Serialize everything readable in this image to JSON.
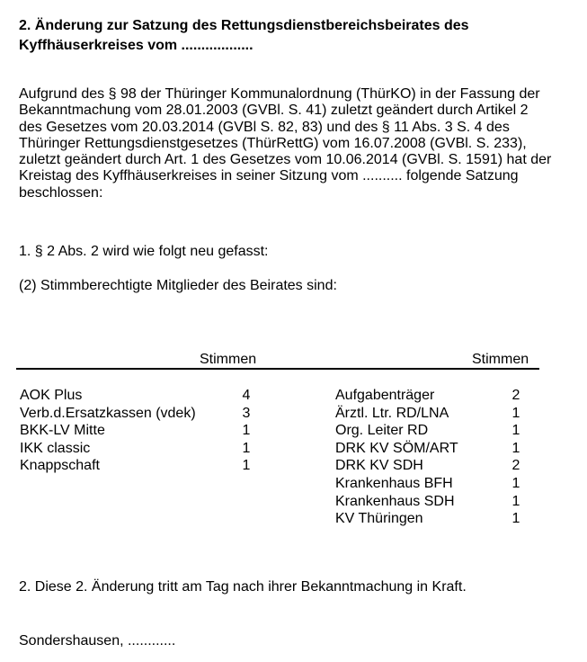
{
  "colors": {
    "page_background": "#ffffff",
    "text": "#000000",
    "table_rule": "#000000"
  },
  "document": {
    "title_lines": [
      "2. Änderung zur Satzung des Rettungsdienstbereichsbeirates des",
      "Kyffhäuserkreises vom .................."
    ],
    "intro_lines": [
      "Aufgrund des § 98 der Thüringer Kommunalordnung (ThürKO) in der Fassung der",
      "Bekanntmachung vom 28.01.2003 (GVBl. S. 41) zuletzt geändert durch Artikel 2",
      "des Gesetzes vom 20.03.2014 (GVBl S. 82, 83) und des § 11 Abs. 3 S. 4 des",
      "Thüringer Rettungsdienstgesetzes (ThürRettG) vom 16.07.2008 (GVBl. S. 233),",
      "zuletzt geändert durch Art. 1 des Gesetzes vom 10.06.2014 (GVBl. S. 1591) hat der",
      "Kreistag des Kyffhäuserkreises in seiner Sitzung vom .......... folgende Satzung",
      "beschlossen:"
    ],
    "section1": "1. § 2 Abs. 2 wird wie folgt neu gefasst:",
    "subsection2": "(2) Stimmberechtigte Mitglieder des Beirates sind:",
    "tables": {
      "left": {
        "header": "Stimmen",
        "rows": [
          {
            "label": "AOK Plus",
            "votes": "4"
          },
          {
            "label": "Verb.d.Ersatzkassen (vdek)",
            "votes": "3"
          },
          {
            "label": "BKK-LV Mitte",
            "votes": "1"
          },
          {
            "label": "IKK classic",
            "votes": "1"
          },
          {
            "label": "Knappschaft",
            "votes": "1"
          }
        ]
      },
      "right": {
        "header": "Stimmen",
        "rows": [
          {
            "label": "Aufgabenträger",
            "votes": "2"
          },
          {
            "label": "Ärztl. Ltr. RD/LNA",
            "votes": "1"
          },
          {
            "label": "Org. Leiter RD",
            "votes": "1"
          },
          {
            "label": "DRK KV SÖM/ART",
            "votes": "1"
          },
          {
            "label": "DRK KV SDH",
            "votes": "2"
          },
          {
            "label": "Krankenhaus BFH",
            "votes": "1"
          },
          {
            "label": "Krankenhaus SDH",
            "votes": "1"
          },
          {
            "label": "KV Thüringen",
            "votes": "1"
          }
        ]
      }
    },
    "section2": "2. Diese 2. Änderung tritt am Tag nach ihrer Bekanntmachung in Kraft.",
    "closing": "Sondershausen, ............"
  }
}
